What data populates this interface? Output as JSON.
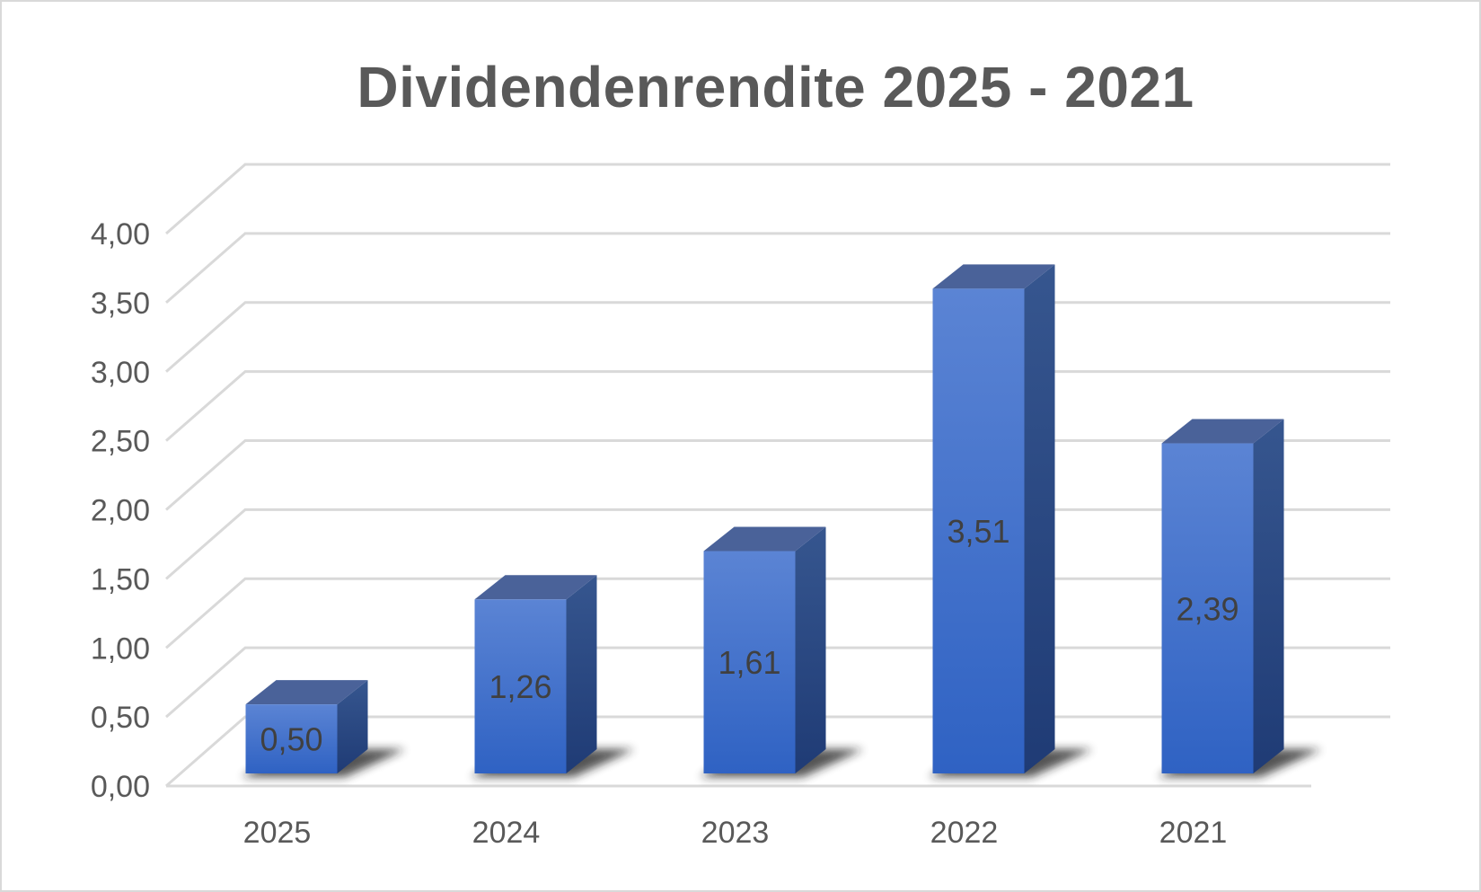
{
  "chart_data": {
    "type": "bar",
    "title": "Dividendenrendite 2025 - 2021",
    "categories": [
      "2025",
      "2024",
      "2023",
      "2022",
      "2021"
    ],
    "values": [
      0.5,
      1.26,
      1.61,
      3.51,
      2.39
    ],
    "data_labels": [
      "0,50",
      "1,26",
      "1,61",
      "3,51",
      "2,39"
    ],
    "y_ticks": [
      "0,00",
      "0,50",
      "1,00",
      "1,50",
      "2,00",
      "2,50",
      "3,00",
      "3,50",
      "4,00"
    ],
    "ylim": [
      0,
      4
    ],
    "grid": true,
    "style": "3d-column",
    "colors": {
      "front_top": "#5b84d4",
      "front_bottom": "#2f62c3",
      "side": "#23427f",
      "top": "#4a6299",
      "grid": "#d9d9d9",
      "text": "#595959"
    }
  }
}
